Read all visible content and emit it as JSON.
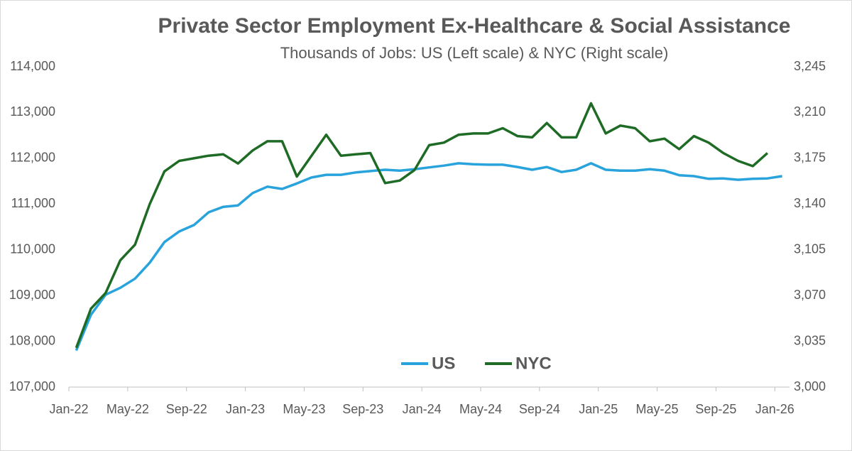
{
  "chart_data": {
    "type": "line",
    "title": "Private Sector Employment Ex-Healthcare & Social Assistance",
    "subtitle": "Thousands of Jobs: US (Left scale) & NYC (Right scale)",
    "categories": [
      "Jan-22",
      null,
      null,
      null,
      "May-22",
      null,
      null,
      null,
      "Sep-22",
      null,
      null,
      null,
      "Jan-23",
      null,
      null,
      null,
      "May-23",
      null,
      null,
      null,
      "Sep-23",
      null,
      null,
      null,
      "Jan-24",
      null,
      null,
      null,
      "May-24",
      null,
      null,
      null,
      "Sep-24",
      null,
      null,
      null,
      "Jan-25",
      null,
      null,
      null,
      "May-25",
      null,
      null,
      null,
      "Sep-25",
      null,
      null,
      null,
      "Jan-26"
    ],
    "series": [
      {
        "name": "US",
        "color": "#29a3dc",
        "values": [
          107800,
          108580,
          109020,
          109170,
          109370,
          109720,
          110170,
          110400,
          110540,
          110820,
          110940,
          110970,
          111240,
          111380,
          111330,
          111450,
          111580,
          111640,
          111640,
          111690,
          111720,
          111750,
          111730,
          111760,
          111800,
          111840,
          111890,
          111870,
          111860,
          111860,
          111810,
          111750,
          111810,
          111700,
          111750,
          111890,
          111750,
          111730,
          111730,
          111760,
          111730,
          111630,
          111610,
          111550,
          111560,
          111530,
          111550,
          111560,
          111610
        ]
      },
      {
        "name": "NYC",
        "color": "#1e6b25",
        "axis": "y2",
        "values": [
          3030,
          3060,
          3072,
          3097,
          3109,
          3140,
          3165,
          3173,
          3175,
          3177,
          3178,
          3171,
          3181,
          3188,
          3188,
          3161,
          3177,
          3193,
          3177,
          3178,
          3179,
          3156,
          3158,
          3166,
          3185,
          3187,
          3193,
          3194,
          3194,
          3198,
          3192,
          3191,
          3202,
          3191,
          3191,
          3217,
          3194,
          3200,
          3198,
          3188,
          3190,
          3182,
          3192,
          3187,
          3179,
          3173,
          3169,
          3179,
          null
        ]
      }
    ],
    "ylim": [
      107000,
      114000
    ],
    "yticks": [
      {
        "value": 107000,
        "label": "107,000"
      },
      {
        "value": 108000,
        "label": "108,000"
      },
      {
        "value": 109000,
        "label": "109,000"
      },
      {
        "value": 110000,
        "label": "110,000"
      },
      {
        "value": 111000,
        "label": "111,000"
      },
      {
        "value": 112000,
        "label": "112,000"
      },
      {
        "value": 113000,
        "label": "113,000"
      },
      {
        "value": 114000,
        "label": "114,000"
      }
    ],
    "y2lim": [
      3000,
      3245
    ],
    "y2ticks": [
      {
        "value": 3000,
        "label": "3,000"
      },
      {
        "value": 3035,
        "label": "3,035"
      },
      {
        "value": 3070,
        "label": "3,070"
      },
      {
        "value": 3105,
        "label": "3,105"
      },
      {
        "value": 3140,
        "label": "3,140"
      },
      {
        "value": 3175,
        "label": "3,175"
      },
      {
        "value": 3210,
        "label": "3,210"
      },
      {
        "value": 3245,
        "label": "3,245"
      }
    ],
    "grid": false,
    "legend": "bottom"
  }
}
